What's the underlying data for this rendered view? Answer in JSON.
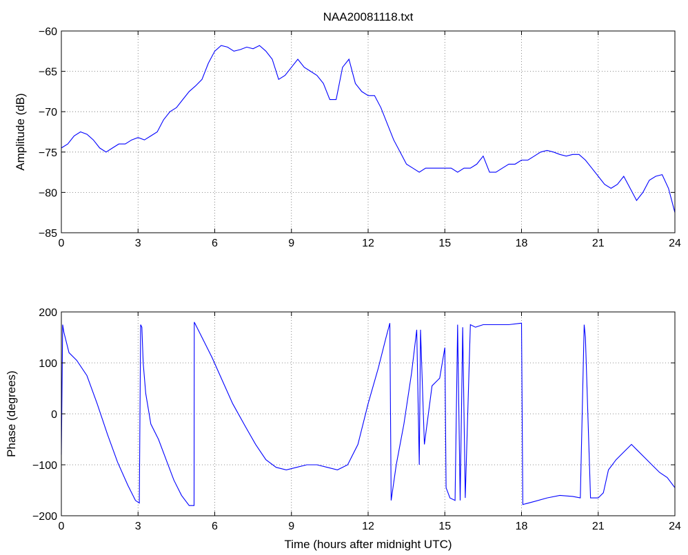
{
  "chart_data": [
    {
      "type": "line",
      "title": "NAA20081118.txt",
      "xlabel": "",
      "ylabel": "Amplitude (dB)",
      "xlim": [
        0,
        24
      ],
      "ylim": [
        -85,
        -60
      ],
      "xticks": [
        "0",
        "3",
        "6",
        "9",
        "12",
        "15",
        "18",
        "21",
        "24"
      ],
      "yticks": [
        "-60",
        "-65",
        "-70",
        "-75",
        "-80",
        "-85"
      ],
      "grid": true,
      "line_color": "#0000ff",
      "series": [
        {
          "x": [
            0,
            0.25,
            0.5,
            0.75,
            1.0,
            1.25,
            1.5,
            1.75,
            2.0,
            2.25,
            2.5,
            2.75,
            3.0,
            3.25,
            3.5,
            3.75,
            4.0,
            4.25,
            4.5,
            4.75,
            5.0,
            5.25,
            5.5,
            5.75,
            6.0,
            6.25,
            6.5,
            6.75,
            7.0,
            7.25,
            7.5,
            7.75,
            8.0,
            8.25,
            8.5,
            8.75,
            9.0,
            9.25,
            9.5,
            9.75,
            10.0,
            10.25,
            10.5,
            10.75,
            11.0,
            11.25,
            11.5,
            11.75,
            12.0,
            12.25,
            12.5,
            12.75,
            13.0,
            13.25,
            13.5,
            13.75,
            14.0,
            14.25,
            14.5,
            14.75,
            15.0,
            15.25,
            15.5,
            15.75,
            16.0,
            16.25,
            16.5,
            16.75,
            17.0,
            17.25,
            17.5,
            17.75,
            18.0,
            18.25,
            18.5,
            18.75,
            19.0,
            19.25,
            19.5,
            19.75,
            20.0,
            20.25,
            20.5,
            20.75,
            21.0,
            21.25,
            21.5,
            21.75,
            22.0,
            22.25,
            22.5,
            22.75,
            23.0,
            23.25,
            23.5,
            23.75,
            24.0
          ],
          "y": [
            -74.5,
            -74.0,
            -73.0,
            -72.5,
            -72.8,
            -73.5,
            -74.5,
            -75.0,
            -74.5,
            -74.0,
            -74.0,
            -73.5,
            -73.2,
            -73.5,
            -73.0,
            -72.5,
            -71.0,
            -70.0,
            -69.5,
            -68.5,
            -67.5,
            -66.8,
            -66.0,
            -64.0,
            -62.5,
            -61.8,
            -62.0,
            -62.5,
            -62.3,
            -62.0,
            -62.2,
            -61.8,
            -62.5,
            -63.5,
            -66.0,
            -65.5,
            -64.5,
            -63.5,
            -64.5,
            -65.0,
            -65.5,
            -66.5,
            -68.5,
            -68.5,
            -64.5,
            -63.5,
            -66.5,
            -67.5,
            -68.0,
            -68.0,
            -69.5,
            -71.5,
            -73.5,
            -75.0,
            -76.5,
            -77.0,
            -77.5,
            -77.0,
            -77.0,
            -77.0,
            -77.0,
            -77.0,
            -77.5,
            -77.0,
            -77.0,
            -76.5,
            -75.5,
            -77.5,
            -77.5,
            -77.0,
            -76.5,
            -76.5,
            -76.0,
            -76.0,
            -75.5,
            -75.0,
            -74.8,
            -75.0,
            -75.3,
            -75.5,
            -75.3,
            -75.3,
            -76.0,
            -77.0,
            -78.0,
            -79.0,
            -79.5,
            -79.0,
            -78.0,
            -79.5,
            -81.0,
            -80.0,
            -78.5,
            -78.0,
            -77.8,
            -79.5,
            -82.5
          ]
        }
      ]
    },
    {
      "type": "line",
      "title": "",
      "xlabel": "Time (hours after midnight UTC)",
      "ylabel": "Phase (degrees)",
      "xlim": [
        0,
        24
      ],
      "ylim": [
        -200,
        200
      ],
      "xticks": [
        "0",
        "3",
        "6",
        "9",
        "12",
        "15",
        "18",
        "21",
        "24"
      ],
      "yticks": [
        "200",
        "100",
        "0",
        "-100",
        "-200"
      ],
      "grid": true,
      "line_color": "#0000ff",
      "series": [
        {
          "x": [
            0,
            0.05,
            0.1,
            0.3,
            0.6,
            1.0,
            1.4,
            1.8,
            2.2,
            2.6,
            2.9,
            3.05,
            3.1,
            3.15,
            3.2,
            3.3,
            3.5,
            3.8,
            4.1,
            4.4,
            4.7,
            5.0,
            5.19,
            5.2,
            5.5,
            5.9,
            6.3,
            6.7,
            7.2,
            7.6,
            8.0,
            8.4,
            8.8,
            9.2,
            9.6,
            10.0,
            10.4,
            10.8,
            11.2,
            11.6,
            12.0,
            12.4,
            12.7,
            12.85,
            12.9,
            13.1,
            13.4,
            13.7,
            13.9,
            14.0,
            14.05,
            14.2,
            14.5,
            14.8,
            15.0,
            15.05,
            15.2,
            15.4,
            15.5,
            15.6,
            15.7,
            15.8,
            16.0,
            16.2,
            16.5,
            17.0,
            17.5,
            18.0,
            18.05,
            18.5,
            19.0,
            19.5,
            20.0,
            20.3,
            20.45,
            20.5,
            20.7,
            21.0,
            21.2,
            21.4,
            21.7,
            22.0,
            22.3,
            22.5,
            22.8,
            23.1,
            23.4,
            23.7,
            24.0
          ],
          "y": [
            -80,
            175,
            160,
            120,
            105,
            75,
            20,
            -40,
            -95,
            -140,
            -170,
            -175,
            175,
            170,
            100,
            40,
            -20,
            -50,
            -90,
            -130,
            -160,
            -180,
            -180,
            180,
            150,
            110,
            65,
            20,
            -25,
            -60,
            -90,
            -105,
            -110,
            -105,
            -100,
            -100,
            -105,
            -110,
            -100,
            -60,
            20,
            90,
            150,
            178,
            -170,
            -100,
            -20,
            80,
            165,
            -100,
            165,
            -60,
            55,
            70,
            130,
            -145,
            -165,
            -170,
            175,
            -170,
            170,
            -165,
            175,
            170,
            175,
            175,
            175,
            178,
            -178,
            -172,
            -165,
            -160,
            -162,
            -165,
            175,
            150,
            -165,
            -165,
            -155,
            -110,
            -90,
            -75,
            -60,
            -70,
            -85,
            -100,
            -115,
            -125,
            -145
          ]
        }
      ]
    }
  ]
}
